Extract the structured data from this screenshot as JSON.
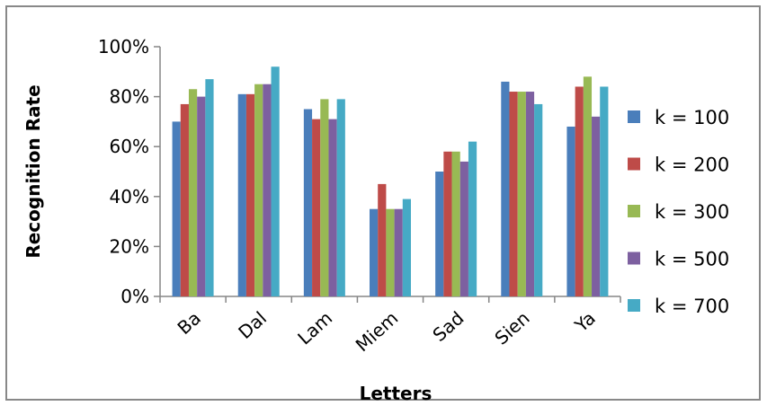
{
  "chart_data": {
    "type": "bar",
    "xlabel": "Letters",
    "ylabel": "Recognition Rate",
    "ylim": [
      0,
      100
    ],
    "yticks": [
      "0%",
      "20%",
      "40%",
      "60%",
      "80%",
      "100%"
    ],
    "grid": false,
    "legend_position": "right",
    "categories": [
      "Ba",
      "Dal",
      "Lam",
      "Miem",
      "Sad",
      "Sien",
      "Ya"
    ],
    "series": [
      {
        "name": "k = 100",
        "color": "#4a7ebb",
        "values": [
          70,
          81,
          75,
          35,
          50,
          86,
          68
        ]
      },
      {
        "name": "k = 200",
        "color": "#be4b48",
        "values": [
          77,
          81,
          71,
          45,
          58,
          82,
          84
        ]
      },
      {
        "name": "k = 300",
        "color": "#98b954",
        "values": [
          83,
          85,
          79,
          35,
          58,
          82,
          88
        ]
      },
      {
        "name": "k = 500",
        "color": "#7d60a0",
        "values": [
          80,
          85,
          71,
          35,
          54,
          82,
          72
        ]
      },
      {
        "name": "k = 700",
        "color": "#46aac5",
        "values": [
          87,
          92,
          79,
          39,
          62,
          77,
          84
        ]
      }
    ]
  }
}
